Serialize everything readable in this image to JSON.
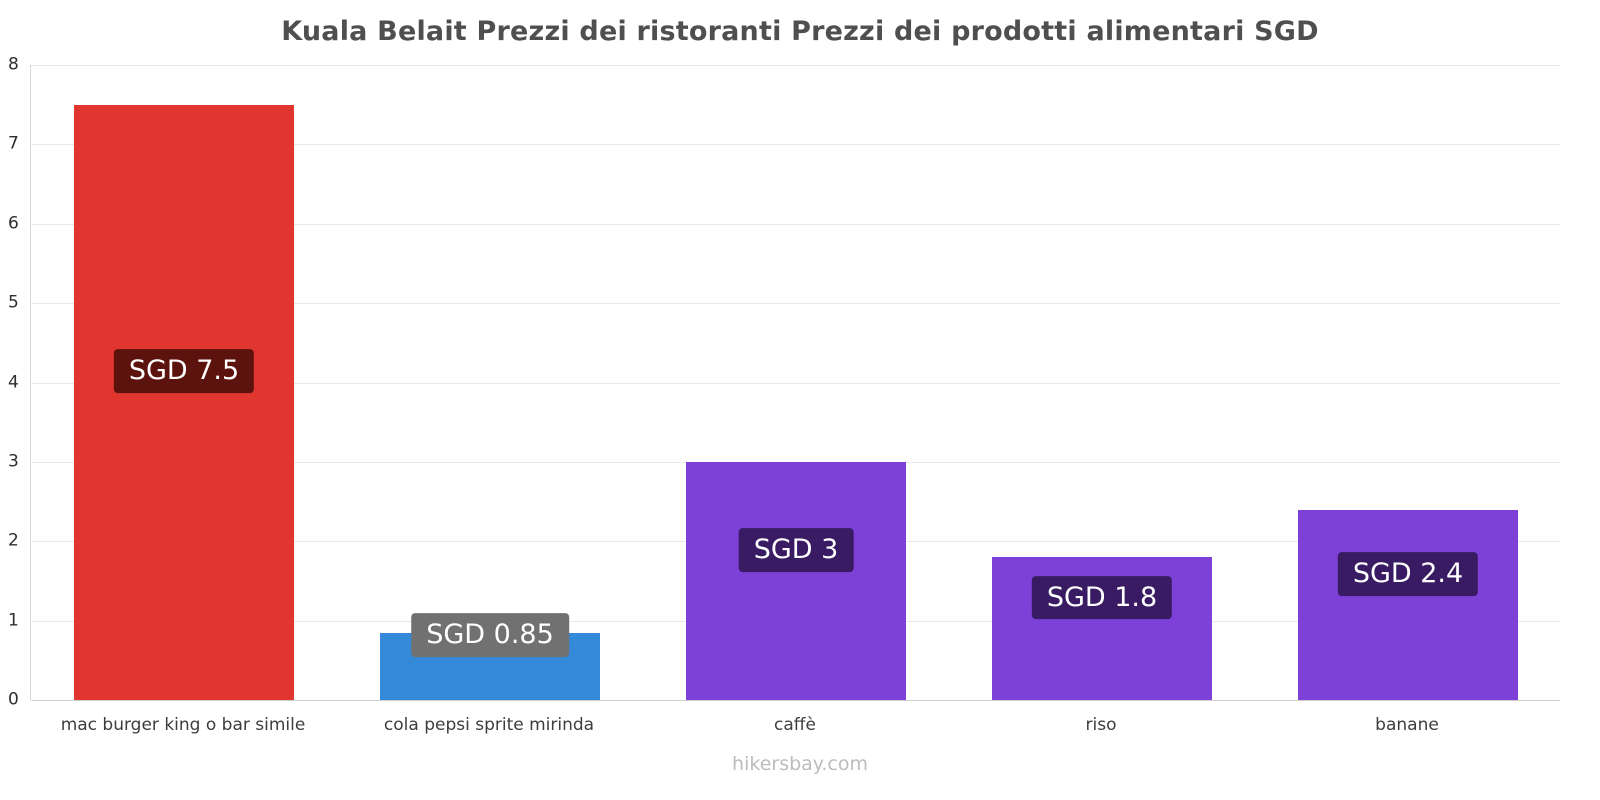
{
  "title": "Kuala Belait Prezzi dei ristoranti Prezzi dei prodotti alimentari SGD",
  "footer": "hikersbay.com",
  "chart_data": {
    "type": "bar",
    "title": "Kuala Belait Prezzi dei ristoranti Prezzi dei prodotti alimentari SGD",
    "currency": "SGD",
    "categories": [
      "mac burger king o bar simile",
      "cola pepsi sprite mirinda",
      "caffè",
      "riso",
      "banane"
    ],
    "values": [
      7.5,
      0.85,
      3,
      1.8,
      2.4
    ],
    "value_labels": [
      "SGD 7.5",
      "SGD 0.85",
      "SGD 3",
      "SGD 1.8",
      "SGD 2.4"
    ],
    "bar_colors": [
      "#e1352f",
      "#3489d8",
      "#7d41d8",
      "#7d41d8",
      "#7d41d8"
    ],
    "label_bg_colors": [
      "#5c120d",
      "#717171",
      "#391b63",
      "#391b63",
      "#391b63"
    ],
    "xlabel": "",
    "ylabel": "",
    "ylim": [
      0,
      8
    ],
    "yticks": [
      0,
      1,
      2,
      3,
      4,
      5,
      6,
      7,
      8
    ],
    "grid": true,
    "legend": "none"
  }
}
